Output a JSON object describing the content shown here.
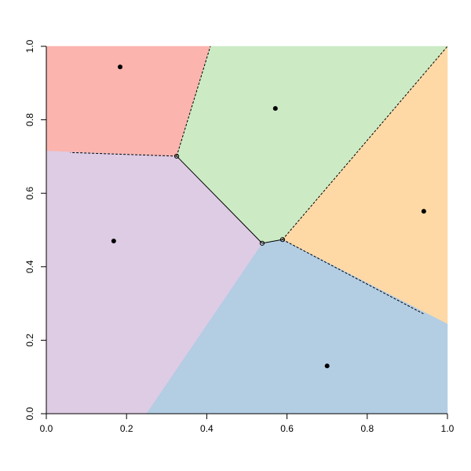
{
  "chart_data": {
    "type": "voronoi",
    "xlim": [
      0,
      1
    ],
    "ylim": [
      0,
      1
    ],
    "xticks": [
      {
        "value": 0,
        "label": "0.0"
      },
      0.2,
      0.4,
      0.6,
      0.8,
      {
        "value": 1,
        "label": "1.0"
      }
    ],
    "yticks": [
      {
        "value": 0,
        "label": "0.0"
      },
      0.2,
      0.4,
      0.6,
      0.8,
      {
        "value": 1,
        "label": "1.0"
      }
    ],
    "regions": [
      {
        "color": "#fbb4ae",
        "x": [
          0,
          0.409,
          0.325,
          0
        ],
        "y": [
          1,
          1,
          0.701,
          0.715
        ]
      },
      {
        "color": "#ccebc5",
        "x": [
          0.409,
          1,
          0.589,
          0.538,
          0.325
        ],
        "y": [
          1,
          1,
          0.474,
          0.464,
          0.701
        ]
      },
      {
        "color": "#fed9a6",
        "x": [
          1,
          1,
          0.589
        ],
        "y": [
          1,
          0.244,
          0.474
        ]
      },
      {
        "color": "#b3cde3",
        "x": [
          0.589,
          1,
          1,
          0.249,
          0.538
        ],
        "y": [
          0.474,
          0.244,
          0,
          0,
          0.464
        ]
      },
      {
        "color": "#decbe4",
        "x": [
          0,
          0.325,
          0.538,
          0.249,
          0
        ],
        "y": [
          0.715,
          0.701,
          0.464,
          0,
          0
        ]
      }
    ],
    "edges": [
      {
        "x": [
          0.325,
          0.409
        ],
        "y": [
          0.701,
          1
        ],
        "dashed": true
      },
      {
        "x": [
          0.325,
          0.06
        ],
        "y": [
          0.701,
          0.711
        ],
        "dashed": true
      },
      {
        "x": [
          0.325,
          0.538
        ],
        "y": [
          0.701,
          0.464
        ],
        "dashed": false
      },
      {
        "x": [
          0.538,
          0.589
        ],
        "y": [
          0.464,
          0.474
        ],
        "dashed": false
      },
      {
        "x": [
          0.589,
          1
        ],
        "y": [
          0.474,
          1
        ],
        "dashed": true
      },
      {
        "x": [
          0.589,
          0.94
        ],
        "y": [
          0.474,
          0.272
        ],
        "dashed": true
      }
    ],
    "sites": {
      "color": "#000000",
      "x": [
        0.184,
        0.571,
        0.941,
        0.168,
        0.7
      ],
      "y": [
        0.944,
        0.831,
        0.551,
        0.47,
        0.13
      ]
    },
    "vertices": {
      "x": [
        0.325,
        0.538,
        0.589
      ],
      "y": [
        0.701,
        0.464,
        0.474
      ]
    }
  }
}
